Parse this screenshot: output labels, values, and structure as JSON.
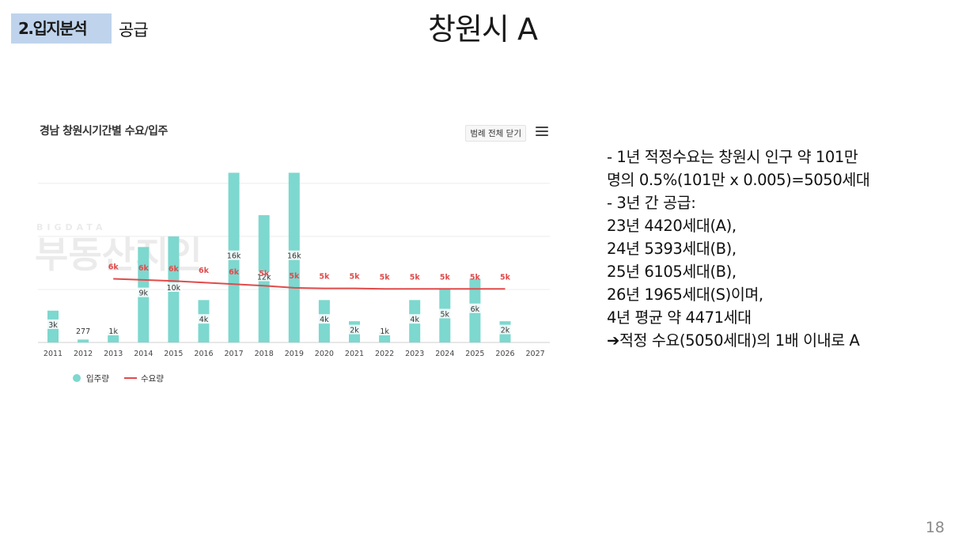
{
  "header": {
    "section_tag": "2.입지분석",
    "section_sub": "공급",
    "title": "창원시 A"
  },
  "page_number": "18",
  "chart_panel": {
    "legend_toggle_label": "범례 전체 닫기",
    "watermark_small": "BIGDATA",
    "watermark_large": "부동산지인"
  },
  "chart_data": {
    "type": "bar",
    "title": "경남 창원시기간별 수요/입주",
    "categories": [
      "2011",
      "2012",
      "2013",
      "2014",
      "2015",
      "2016",
      "2017",
      "2018",
      "2019",
      "2020",
      "2021",
      "2022",
      "2023",
      "2024",
      "2025",
      "2026",
      "2027"
    ],
    "series": [
      {
        "name": "입주량",
        "type": "bar",
        "color": "#7dd8cf",
        "values": [
          3000,
          277,
          1000,
          9000,
          10000,
          4000,
          16000,
          12000,
          16000,
          4000,
          2000,
          1000,
          4000,
          5000,
          6000,
          2000,
          null
        ],
        "labels": [
          "3k",
          "277",
          "1k",
          "9k",
          "10k",
          "4k",
          "16k",
          "12k",
          "16k",
          "4k",
          "2k",
          "1k",
          "4k",
          "5k",
          "6k",
          "2k",
          ""
        ]
      },
      {
        "name": "수요량",
        "type": "line",
        "color": "#e14b4b",
        "values": [
          null,
          null,
          6000,
          5900,
          5800,
          5650,
          5500,
          5350,
          5150,
          5100,
          5100,
          5050,
          5050,
          5050,
          5050,
          5050,
          null
        ],
        "labels": [
          "",
          "",
          "6k",
          "6k",
          "6k",
          "6k",
          "6k",
          "5k",
          "5k",
          "5k",
          "5k",
          "5k",
          "5k",
          "5k",
          "5k",
          "5k",
          ""
        ]
      }
    ],
    "ylim": [
      0,
      17000
    ],
    "grid": true,
    "legend": "bottom-left"
  },
  "description": {
    "lines": [
      "- 1년 적정수요는 창원시 인구 약 101만",
      "명의 0.5%(101만 x 0.005)=5050세대",
      "-    3년 간 공급:",
      "23년 4420세대(A),",
      "24년 5393세대(B),",
      "25년 6105세대(B),",
      "26년 1965세대(S)이며,",
      "4년 평균 약 4471세대"
    ],
    "conclusion_arrow": "➔",
    "conclusion": "적정 수요(5050세대)의 1배 이내로 A"
  }
}
